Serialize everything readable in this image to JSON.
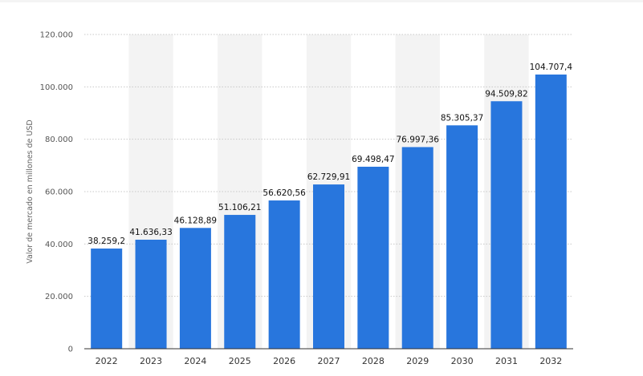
{
  "chart_data": {
    "type": "bar",
    "title": "",
    "xlabel": "",
    "ylabel": "Valor de mercado en millones de USD",
    "categories": [
      "2022",
      "2023",
      "2024",
      "2025",
      "2026",
      "2027",
      "2028",
      "2029",
      "2030",
      "2031",
      "2032"
    ],
    "values": [
      38259.2,
      41636.33,
      46128.89,
      51106.21,
      56620.56,
      62729.91,
      69498.47,
      76997.36,
      85305.37,
      94509.82,
      104707.4
    ],
    "value_labels": [
      "38.259,2",
      "41.636,33",
      "46.128,89",
      "51.106,21",
      "56.620,56",
      "62.729,91",
      "69.498,47",
      "76.997,36",
      "85.305,37",
      "94.509,82",
      "104.707,4"
    ],
    "ylim": [
      0,
      120000
    ],
    "y_ticks": [
      0,
      20000,
      40000,
      60000,
      80000,
      100000,
      120000
    ],
    "y_tick_labels": [
      "0",
      "20.000",
      "40.000",
      "60.000",
      "80.000",
      "100.000",
      "120.000"
    ],
    "grid": true,
    "colors": {
      "bar": "#2876dd",
      "band": "#f3f3f3",
      "grid": "#c8c8c8",
      "axis": "#333333"
    }
  }
}
